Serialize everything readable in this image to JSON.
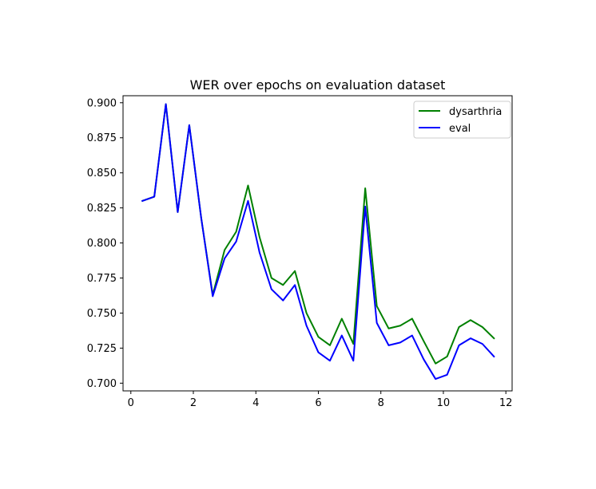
{
  "chart_data": {
    "type": "line",
    "title": "WER over epochs on evaluation dataset",
    "xlabel": "",
    "ylabel": "",
    "xlim": [
      -0.25,
      12.2
    ],
    "ylim": [
      0.6945,
      0.905
    ],
    "xticks": [
      0,
      2,
      4,
      6,
      8,
      10,
      12
    ],
    "xtick_labels": [
      "0",
      "2",
      "4",
      "6",
      "8",
      "10",
      "12"
    ],
    "yticks": [
      0.7,
      0.725,
      0.75,
      0.775,
      0.8,
      0.825,
      0.85,
      0.875,
      0.9
    ],
    "ytick_labels": [
      "0.700",
      "0.725",
      "0.750",
      "0.775",
      "0.800",
      "0.825",
      "0.850",
      "0.875",
      "0.900"
    ],
    "grid": false,
    "legend_position": "top-right",
    "x": [
      0.37,
      0.75,
      1.12,
      1.5,
      1.87,
      2.25,
      2.62,
      3.0,
      3.37,
      3.75,
      4.12,
      4.5,
      4.87,
      5.25,
      5.62,
      6.0,
      6.37,
      6.75,
      7.12,
      7.5,
      7.87,
      8.25,
      8.62,
      9.0,
      9.37,
      9.75,
      10.12,
      10.5,
      10.87,
      11.25,
      11.62
    ],
    "series": [
      {
        "name": "dysarthria",
        "color": "#008000",
        "values": [
          0.83,
          0.833,
          0.899,
          0.822,
          0.884,
          0.818,
          0.763,
          0.795,
          0.808,
          0.841,
          0.804,
          0.775,
          0.77,
          0.78,
          0.75,
          0.733,
          0.727,
          0.746,
          0.728,
          0.839,
          0.755,
          0.739,
          0.741,
          0.746,
          0.73,
          0.714,
          0.719,
          0.74,
          0.745,
          0.74,
          0.732
        ]
      },
      {
        "name": "eval",
        "color": "#0000ff",
        "values": [
          0.83,
          0.833,
          0.899,
          0.822,
          0.884,
          0.818,
          0.762,
          0.789,
          0.801,
          0.83,
          0.793,
          0.767,
          0.759,
          0.77,
          0.741,
          0.722,
          0.716,
          0.734,
          0.716,
          0.826,
          0.743,
          0.727,
          0.729,
          0.734,
          0.717,
          0.703,
          0.706,
          0.727,
          0.732,
          0.728,
          0.719
        ]
      }
    ]
  }
}
